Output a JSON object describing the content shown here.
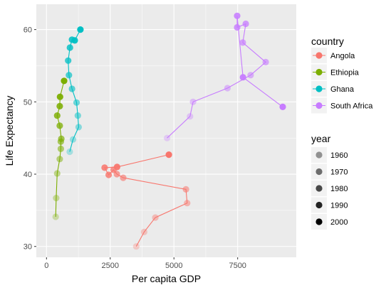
{
  "chart_data": {
    "type": "scatter",
    "xlabel": "Per capita GDP",
    "ylabel": "Life Expectancy",
    "xlim": [
      -400,
      9800
    ],
    "ylim": [
      28.5,
      63.5
    ],
    "xticks": [
      0,
      2500,
      5000,
      7500
    ],
    "xtick_labels": [
      "0",
      "2500",
      "5000",
      "7500"
    ],
    "yticks": [
      30,
      40,
      50,
      60
    ],
    "ytick_labels": [
      "30",
      "40",
      "50",
      "60"
    ],
    "grid": true,
    "legend_position": "right",
    "color_legend": {
      "title": "country",
      "entries": [
        "Angola",
        "Ethiopia",
        "Ghana",
        "South Africa"
      ]
    },
    "alpha_legend": {
      "title": "year",
      "entries": [
        "1960",
        "1970",
        "1980",
        "1990",
        "2000"
      ]
    },
    "colors": {
      "Angola": "#F8766D",
      "Ethiopia": "#7CAE00",
      "Ghana": "#00BFC4",
      "South Africa": "#C77CFF",
      "panel": "#EBEBEB",
      "grid": "#FFFFFF"
    },
    "series": [
      {
        "name": "Angola",
        "x": [
          3520,
          3830,
          4270,
          5520,
          5470,
          3010,
          2760,
          2630,
          2440,
          2280,
          2770,
          4800
        ],
        "y": [
          30.0,
          32.0,
          34.0,
          36.0,
          37.9,
          39.5,
          40.0,
          40.6,
          39.9,
          40.9,
          41.0,
          42.7
        ],
        "year": [
          1952,
          1957,
          1962,
          1967,
          1972,
          1977,
          1982,
          1987,
          1992,
          1997,
          2002,
          2007
        ]
      },
      {
        "name": "Ethiopia",
        "x": [
          360,
          380,
          420,
          520,
          560,
          560,
          580,
          520,
          420,
          520,
          530,
          690
        ],
        "y": [
          34.1,
          36.7,
          40.1,
          42.1,
          43.5,
          44.5,
          44.9,
          46.7,
          48.1,
          49.4,
          50.7,
          52.9
        ],
        "year": [
          1952,
          1957,
          1962,
          1967,
          1972,
          1977,
          1982,
          1987,
          1992,
          1997,
          2002,
          2007
        ]
      },
      {
        "name": "Ghana",
        "x": [
          910,
          1040,
          1260,
          1230,
          1180,
          1000,
          880,
          850,
          920,
          1000,
          1110,
          1330
        ],
        "y": [
          43.1,
          44.8,
          46.5,
          48.1,
          49.9,
          51.8,
          53.7,
          55.7,
          57.5,
          58.6,
          58.5,
          60.0
        ],
        "year": [
          1952,
          1957,
          1962,
          1967,
          1972,
          1977,
          1982,
          1987,
          1992,
          1997,
          2002,
          2007
        ]
      },
      {
        "name": "South Africa",
        "x": [
          4730,
          5630,
          5750,
          7100,
          8010,
          8600,
          7700,
          7820,
          7480,
          7480,
          7710,
          9270
        ],
        "y": [
          45.0,
          48.0,
          50.0,
          51.9,
          53.7,
          55.5,
          58.2,
          60.8,
          60.3,
          61.9,
          53.4,
          49.3
        ],
        "year": [
          1952,
          1957,
          1962,
          1967,
          1972,
          1977,
          1982,
          1987,
          1992,
          1997,
          2002,
          2007
        ]
      }
    ]
  }
}
